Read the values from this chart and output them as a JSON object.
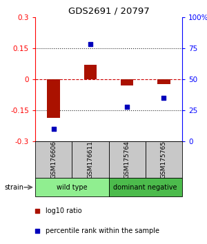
{
  "title": "GDS2691 / 20797",
  "samples": [
    "GSM176606",
    "GSM176611",
    "GSM175764",
    "GSM175765"
  ],
  "log10_ratio": [
    -0.185,
    0.07,
    -0.03,
    -0.022
  ],
  "percentile_rank": [
    10.0,
    78.0,
    28.0,
    35.0
  ],
  "ylim_left": [
    -0.3,
    0.3
  ],
  "ylim_right": [
    0,
    100
  ],
  "yticks_left": [
    -0.3,
    -0.15,
    0,
    0.15,
    0.3
  ],
  "yticks_right": [
    0,
    25,
    50,
    75,
    100
  ],
  "groups": [
    {
      "label": "wild type",
      "samples": [
        0,
        1
      ],
      "color": "#90EE90"
    },
    {
      "label": "dominant negative",
      "samples": [
        2,
        3
      ],
      "color": "#4CBB4C"
    }
  ],
  "bar_color": "#AA1100",
  "dot_color": "#0000BB",
  "group_label": "strain",
  "legend_bar_label": "log10 ratio",
  "legend_dot_label": "percentile rank within the sample",
  "bar_width": 0.35,
  "hline0_color": "#CC0000",
  "hline_other_color": "#222222",
  "label_area_color": "#C8C8C8"
}
